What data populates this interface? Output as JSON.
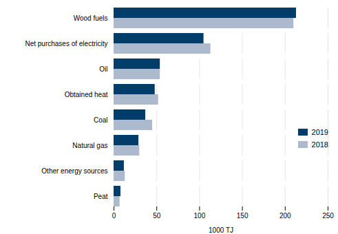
{
  "chart_data": {
    "type": "bar",
    "orientation": "horizontal",
    "categories": [
      "Wood fuels",
      "Net purchases of electricity",
      "Oil",
      "Obtained heat",
      "Coal",
      "Natural gas",
      "Other energy sources",
      "Peat"
    ],
    "series": [
      {
        "name": "2019",
        "color": "#003d6b",
        "values": [
          213,
          105,
          54,
          48,
          37,
          29,
          12,
          8
        ]
      },
      {
        "name": "2018",
        "color": "#adb9cc",
        "values": [
          210,
          113,
          54,
          52,
          45,
          30,
          13,
          7
        ]
      }
    ],
    "xlabel": "1000 TJ",
    "xlim": [
      0,
      250
    ],
    "xticks": [
      0,
      50,
      100,
      150,
      200,
      250
    ],
    "grid": true,
    "legend": "right"
  }
}
